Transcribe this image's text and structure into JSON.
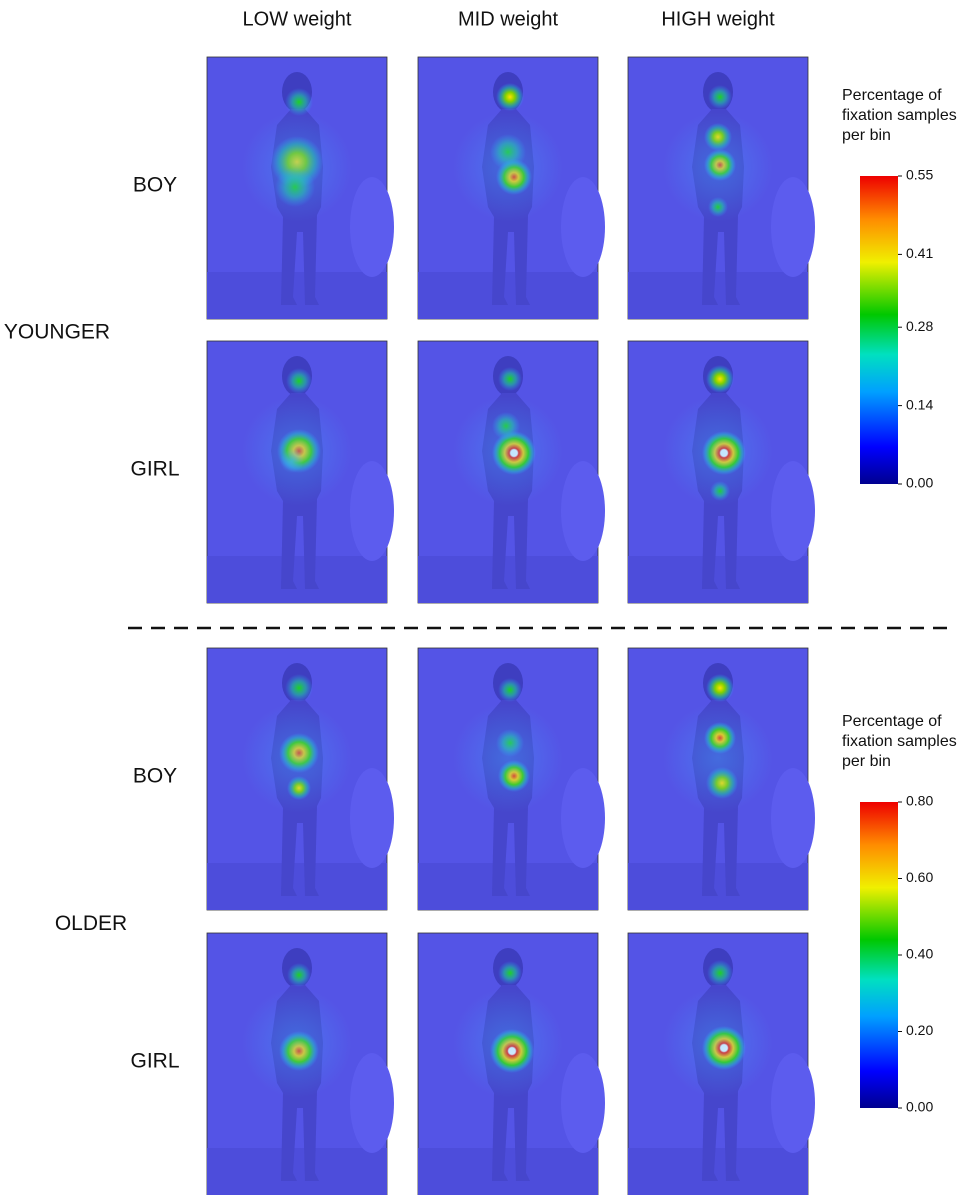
{
  "columns": [
    "LOW weight",
    "MID weight",
    "HIGH weight"
  ],
  "groups": [
    {
      "label": "YOUNGER",
      "rows": [
        "BOY",
        "GIRL"
      ],
      "colorbar": {
        "title_lines": [
          "Percentage of",
          "fixation samples",
          "per bin"
        ],
        "range": [
          0,
          0.55
        ],
        "ticks": [
          {
            "value": 0,
            "label": "0.00"
          },
          0.14,
          0.28,
          0.41,
          0.55
        ]
      }
    },
    {
      "label": "OLDER",
      "rows": [
        "BOY",
        "GIRL"
      ],
      "colorbar": {
        "title_lines": [
          "Percentage of",
          "fixation samples",
          "per bin"
        ],
        "range": [
          0,
          0.8
        ],
        "ticks": [
          {
            "value": 0,
            "label": "0.00"
          },
          {
            "value": 0.2,
            "label": "0.20"
          },
          {
            "value": 0.4,
            "label": "0.40"
          },
          {
            "value": 0.6,
            "label": "0.60"
          },
          {
            "value": 0.8,
            "label": "0.80"
          }
        ]
      }
    }
  ]
}
